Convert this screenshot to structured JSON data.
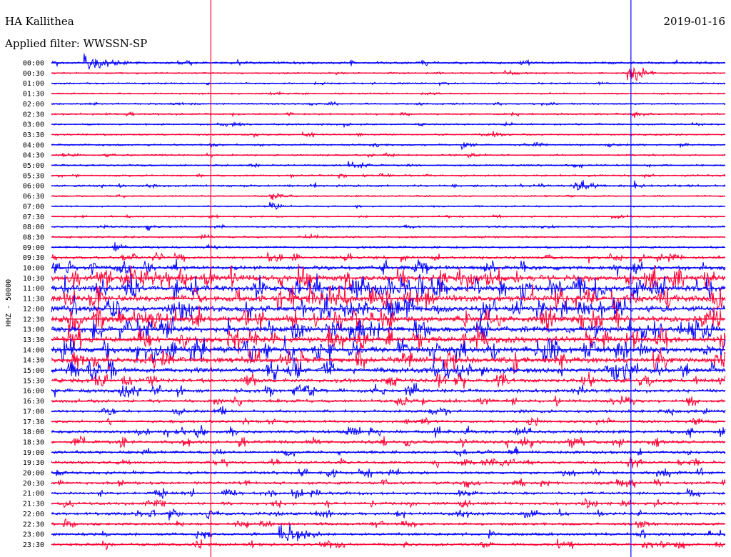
{
  "header": {
    "station": "HA Kallithea",
    "date": "2019-01-16",
    "filter": "Applied filter: WWSSN-SP"
  },
  "chart_data": {
    "type": "line",
    "title": "HA Kallithea",
    "date": "2019-01-16",
    "filter_label": "Applied filter: WWSSN-SP",
    "ylabel": "HHZ - 50000",
    "row_labels": [
      "00:00",
      "00:30",
      "01:00",
      "01:30",
      "02:00",
      "02:30",
      "03:00",
      "03:30",
      "04:00",
      "04:30",
      "05:00",
      "05:30",
      "06:00",
      "06:30",
      "07:00",
      "07:30",
      "08:00",
      "08:30",
      "09:00",
      "09:30",
      "10:00",
      "10:30",
      "11:00",
      "11:30",
      "12:00",
      "12:30",
      "13:00",
      "13:30",
      "14:00",
      "14:30",
      "15:00",
      "15:30",
      "16:00",
      "16:30",
      "17:00",
      "17:30",
      "18:00",
      "18:30",
      "19:00",
      "19:30",
      "20:00",
      "20:30",
      "21:00",
      "21:30",
      "22:00",
      "22:30",
      "23:00",
      "23:30"
    ],
    "row_minutes": 30,
    "colors": {
      "even_rows": "#0000ff",
      "odd_rows": "#ff0033",
      "marker_red": "#ff0033",
      "marker_blue": "#0000ff",
      "text": "#000000"
    },
    "markers": [
      {
        "color": "red",
        "minute": 7.1
      },
      {
        "color": "blue",
        "minute": 25.8
      }
    ],
    "activity": [
      0.25,
      0.1,
      0.1,
      0.1,
      0.1,
      0.15,
      0.12,
      0.12,
      0.15,
      0.12,
      0.15,
      0.15,
      0.2,
      0.1,
      0.1,
      0.1,
      0.12,
      0.15,
      0.2,
      0.35,
      0.6,
      0.95,
      1.0,
      1.0,
      0.95,
      1.0,
      1.0,
      1.0,
      1.0,
      0.95,
      0.8,
      0.6,
      0.5,
      0.4,
      0.35,
      0.3,
      0.4,
      0.45,
      0.35,
      0.35,
      0.35,
      0.35,
      0.35,
      0.35,
      0.35,
      0.3,
      0.35,
      0.35
    ],
    "events": [
      {
        "row": 0,
        "minute": 1.5,
        "amp": 14,
        "dur": 2.5
      },
      {
        "row": 1,
        "minute": 25.7,
        "amp": 22,
        "dur": 1.2
      },
      {
        "row": 1,
        "minute": 20.2,
        "amp": 5,
        "dur": 0.8
      },
      {
        "row": 2,
        "minute": 17.3,
        "amp": 4,
        "dur": 0.8
      },
      {
        "row": 3,
        "minute": 16.5,
        "amp": 4,
        "dur": 0.8
      },
      {
        "row": 5,
        "minute": 25.9,
        "amp": 7,
        "dur": 0.8
      },
      {
        "row": 6,
        "minute": 13.1,
        "amp": 8,
        "dur": 0.3
      },
      {
        "row": 7,
        "minute": 19.7,
        "amp": 6,
        "dur": 0.8
      },
      {
        "row": 8,
        "minute": 7.1,
        "amp": 5,
        "dur": 0.6
      },
      {
        "row": 8,
        "minute": 18.3,
        "amp": 9,
        "dur": 0.4
      },
      {
        "row": 9,
        "minute": 18.6,
        "amp": 4,
        "dur": 0.8
      },
      {
        "row": 10,
        "minute": 13.3,
        "amp": 6,
        "dur": 0.8
      },
      {
        "row": 11,
        "minute": 10.7,
        "amp": 6,
        "dur": 0.3
      },
      {
        "row": 12,
        "minute": 23.3,
        "amp": 14,
        "dur": 1.2
      },
      {
        "row": 12,
        "minute": 25.9,
        "amp": 12,
        "dur": 0.5
      },
      {
        "row": 13,
        "minute": 9.8,
        "amp": 8,
        "dur": 0.9
      },
      {
        "row": 14,
        "minute": 9.8,
        "amp": 7,
        "dur": 0.9
      },
      {
        "row": 15,
        "minute": 25.0,
        "amp": 5,
        "dur": 1.2
      },
      {
        "row": 16,
        "minute": 4.3,
        "amp": 7,
        "dur": 0.4
      },
      {
        "row": 18,
        "minute": 2.8,
        "amp": 9,
        "dur": 0.8
      },
      {
        "row": 39,
        "minute": 18.3,
        "amp": 12,
        "dur": 0.6
      },
      {
        "row": 40,
        "minute": 0.2,
        "amp": 8,
        "dur": 0.6
      },
      {
        "row": 41,
        "minute": 18.3,
        "amp": 14,
        "dur": 0.8
      },
      {
        "row": 42,
        "minute": 18.2,
        "amp": 12,
        "dur": 0.8
      },
      {
        "row": 44,
        "minute": 5.3,
        "amp": 12,
        "dur": 0.6
      },
      {
        "row": 46,
        "minute": 10.2,
        "amp": 26,
        "dur": 1.8
      },
      {
        "row": 46,
        "minute": 19.5,
        "amp": 10,
        "dur": 0.4
      }
    ]
  }
}
